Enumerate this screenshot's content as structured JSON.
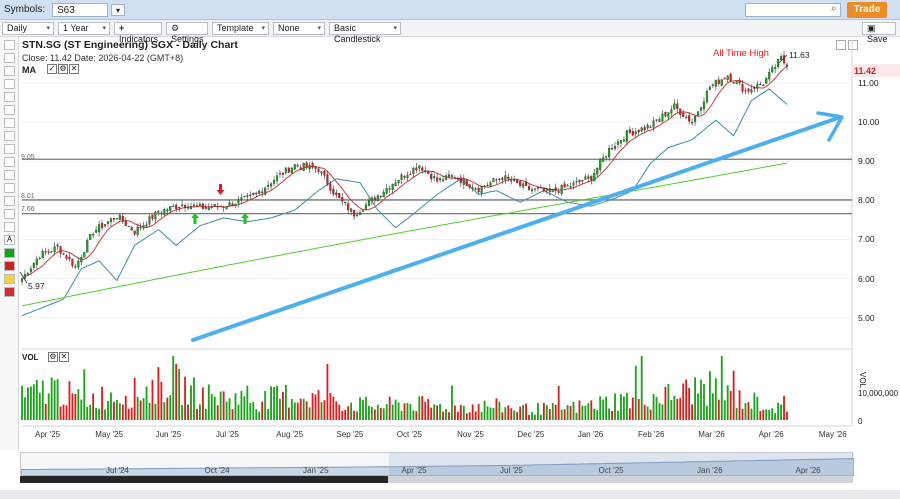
{
  "symbols_bar": {
    "label": "Symbols:",
    "value": "S63",
    "trade_label": "Trade",
    "save_label": "Save"
  },
  "toolbar": {
    "period": "Daily",
    "range": "1 Year",
    "indicators": "Indicators",
    "settings": "Settings",
    "template": "Template",
    "compare": "None",
    "chart_type": "Basic Candlestick"
  },
  "chart": {
    "title": "STN.SG (ST Engineering) SGX - Daily Chart",
    "close_text": "Close: 11.42  Date: 2026-04-22 (GMT+8)",
    "ma_label": "MA",
    "vol_label": "VOL",
    "last_price": "11.42",
    "ath_label": "All Time High",
    "ath_value": "11.63",
    "low_value": "5.97",
    "h_lines": [
      "9.05",
      "8.01",
      "7.66"
    ],
    "volume_scale": [
      "VOL",
      "10,000,000",
      "0"
    ]
  },
  "colors": {
    "up": "#1aa31a",
    "down": "#d42020",
    "ma_fast": "#c83c3c",
    "ma_mid": "#3a8fa3",
    "ma_slow": "#55cc33",
    "trend_arrow": "#4db0ee"
  },
  "chart_data": {
    "type": "candlestick",
    "title": "STN.SG (ST Engineering) SGX - Daily Chart",
    "y_ticks": [
      "11.00",
      "10.00",
      "9.00",
      "8.00",
      "7.00",
      "6.00",
      "5.00"
    ],
    "x_ticks": [
      "Apr '25",
      "May '25",
      "Jun '25",
      "Jul '25",
      "Aug '25",
      "Sep '25",
      "Oct '25",
      "Nov '25",
      "Dec '25",
      "Jan '26",
      "Feb '26",
      "Mar '26",
      "Apr '26",
      "May '26"
    ],
    "ylim": [
      4.3,
      12.1
    ],
    "horizontal_levels": [
      9.05,
      8.01,
      7.66
    ],
    "all_time_high": 11.63,
    "period_low": 5.97,
    "last_close": 11.42,
    "price_path": [
      [
        0,
        6.0
      ],
      [
        6,
        6.6
      ],
      [
        12,
        6.8
      ],
      [
        18,
        6.3
      ],
      [
        24,
        7.2
      ],
      [
        32,
        7.6
      ],
      [
        38,
        7.2
      ],
      [
        46,
        7.7
      ],
      [
        54,
        7.9
      ],
      [
        62,
        7.8
      ],
      [
        70,
        7.9
      ],
      [
        78,
        8.1
      ],
      [
        86,
        8.6
      ],
      [
        92,
        8.9
      ],
      [
        100,
        8.8
      ],
      [
        106,
        8.1
      ],
      [
        112,
        7.65
      ],
      [
        118,
        8.0
      ],
      [
        126,
        8.5
      ],
      [
        134,
        8.9
      ],
      [
        140,
        8.5
      ],
      [
        146,
        8.6
      ],
      [
        154,
        8.3
      ],
      [
        162,
        8.6
      ],
      [
        170,
        8.3
      ],
      [
        178,
        8.2
      ],
      [
        186,
        8.4
      ],
      [
        192,
        8.6
      ],
      [
        198,
        9.3
      ],
      [
        204,
        9.7
      ],
      [
        212,
        9.9
      ],
      [
        220,
        10.4
      ],
      [
        226,
        10.0
      ],
      [
        232,
        10.9
      ],
      [
        238,
        11.2
      ],
      [
        244,
        10.8
      ],
      [
        250,
        11.0
      ],
      [
        256,
        11.63
      ],
      [
        258,
        11.42
      ]
    ],
    "volume_path": [
      [
        0,
        8
      ],
      [
        10,
        12
      ],
      [
        20,
        7
      ],
      [
        30,
        9
      ],
      [
        40,
        10
      ],
      [
        50,
        14
      ],
      [
        60,
        9
      ],
      [
        70,
        8
      ],
      [
        80,
        7
      ],
      [
        90,
        9
      ],
      [
        100,
        8
      ],
      [
        110,
        6
      ],
      [
        120,
        5
      ],
      [
        130,
        6
      ],
      [
        140,
        5
      ],
      [
        150,
        5
      ],
      [
        160,
        5
      ],
      [
        170,
        4
      ],
      [
        180,
        4
      ],
      [
        190,
        5
      ],
      [
        200,
        7
      ],
      [
        210,
        8
      ],
      [
        220,
        9
      ],
      [
        230,
        12
      ],
      [
        240,
        8
      ],
      [
        250,
        6
      ],
      [
        258,
        3
      ]
    ],
    "volume_max": 22,
    "trading_days": 259,
    "annotations": [
      "All Time High",
      "11.63",
      "5.97"
    ]
  },
  "navigator": {
    "labels": [
      "Jul '24",
      "Oct '24",
      "Jan '25",
      "Apr '25",
      "Jul '25",
      "Oct '25",
      "Jan '26",
      "Apr '26"
    ]
  },
  "icons": [
    "search-icon",
    "save-icon",
    "settings-icon",
    "checkmark-icon",
    "close-icon",
    "up-arrow-icon",
    "down-arrow-icon",
    "trend-arrow-icon"
  ]
}
